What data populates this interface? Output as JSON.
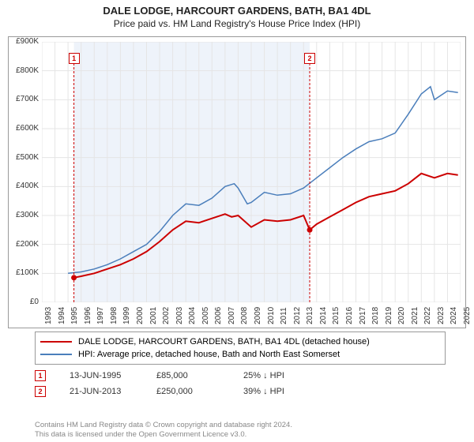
{
  "title": "DALE LODGE, HARCOURT GARDENS, BATH, BA1 4DL",
  "subtitle": "Price paid vs. HM Land Registry's House Price Index (HPI)",
  "chart": {
    "type": "line",
    "background_color": "#ffffff",
    "plot_band_color": "#eef3fa",
    "grid_color": "#e5e5e5",
    "axis_color": "#999999",
    "x_years": [
      1993,
      1994,
      1995,
      1996,
      1997,
      1998,
      1999,
      2000,
      2001,
      2002,
      2003,
      2004,
      2005,
      2006,
      2007,
      2008,
      2009,
      2010,
      2011,
      2012,
      2013,
      2014,
      2015,
      2016,
      2017,
      2018,
      2019,
      2020,
      2021,
      2022,
      2023,
      2024,
      2025
    ],
    "x_min_year": 1993,
    "x_max_year": 2025,
    "y_min": 0,
    "y_max": 900000,
    "y_tick_step": 100000,
    "y_ticks": [
      "£0",
      "£100K",
      "£200K",
      "£300K",
      "£400K",
      "£500K",
      "£600K",
      "£700K",
      "£800K",
      "£900K"
    ],
    "shaded_band": {
      "start_year": 1995.45,
      "end_year": 2013.47
    },
    "series": [
      {
        "id": "price_paid",
        "label": "DALE LODGE, HARCOURT GARDENS, BATH, BA1 4DL (detached house)",
        "color": "#cc0000",
        "line_width": 2,
        "data": [
          [
            1995.45,
            85000
          ],
          [
            1996,
            90000
          ],
          [
            1997,
            100000
          ],
          [
            1998,
            115000
          ],
          [
            1999,
            130000
          ],
          [
            2000,
            150000
          ],
          [
            2001,
            175000
          ],
          [
            2002,
            210000
          ],
          [
            2003,
            250000
          ],
          [
            2004,
            280000
          ],
          [
            2005,
            275000
          ],
          [
            2006,
            290000
          ],
          [
            2007,
            305000
          ],
          [
            2007.5,
            295000
          ],
          [
            2008,
            300000
          ],
          [
            2009,
            260000
          ],
          [
            2010,
            285000
          ],
          [
            2011,
            280000
          ],
          [
            2012,
            285000
          ],
          [
            2013,
            300000
          ],
          [
            2013.47,
            250000
          ],
          [
            2014,
            270000
          ],
          [
            2015,
            295000
          ],
          [
            2016,
            320000
          ],
          [
            2017,
            345000
          ],
          [
            2018,
            365000
          ],
          [
            2019,
            375000
          ],
          [
            2020,
            385000
          ],
          [
            2021,
            410000
          ],
          [
            2022,
            445000
          ],
          [
            2023,
            430000
          ],
          [
            2024,
            445000
          ],
          [
            2024.8,
            440000
          ]
        ],
        "markers": [
          {
            "x": 1995.45,
            "y": 85000
          },
          {
            "x": 2013.47,
            "y": 250000
          }
        ]
      },
      {
        "id": "hpi",
        "label": "HPI: Average price, detached house, Bath and North East Somerset",
        "color": "#4a7ebb",
        "line_width": 1.5,
        "data": [
          [
            1995,
            100000
          ],
          [
            1996,
            105000
          ],
          [
            1997,
            115000
          ],
          [
            1998,
            130000
          ],
          [
            1999,
            150000
          ],
          [
            2000,
            175000
          ],
          [
            2001,
            200000
          ],
          [
            2002,
            245000
          ],
          [
            2003,
            300000
          ],
          [
            2004,
            340000
          ],
          [
            2005,
            335000
          ],
          [
            2006,
            360000
          ],
          [
            2007,
            400000
          ],
          [
            2007.7,
            410000
          ],
          [
            2008,
            395000
          ],
          [
            2008.7,
            340000
          ],
          [
            2009,
            345000
          ],
          [
            2010,
            380000
          ],
          [
            2011,
            370000
          ],
          [
            2012,
            375000
          ],
          [
            2013,
            395000
          ],
          [
            2014,
            430000
          ],
          [
            2015,
            465000
          ],
          [
            2016,
            500000
          ],
          [
            2017,
            530000
          ],
          [
            2018,
            555000
          ],
          [
            2019,
            565000
          ],
          [
            2020,
            585000
          ],
          [
            2021,
            650000
          ],
          [
            2022,
            720000
          ],
          [
            2022.7,
            745000
          ],
          [
            2023,
            700000
          ],
          [
            2024,
            730000
          ],
          [
            2024.8,
            725000
          ]
        ]
      }
    ],
    "sale_markers": [
      {
        "n": "1",
        "year": 1995.45
      },
      {
        "n": "2",
        "year": 2013.47
      }
    ]
  },
  "legend": {
    "rows": [
      {
        "color": "#cc0000",
        "label": "DALE LODGE, HARCOURT GARDENS, BATH, BA1 4DL (detached house)"
      },
      {
        "color": "#4a7ebb",
        "label": "HPI: Average price, detached house, Bath and North East Somerset"
      }
    ]
  },
  "sales": [
    {
      "n": "1",
      "date": "13-JUN-1995",
      "price": "£85,000",
      "pct": "25% ↓ HPI"
    },
    {
      "n": "2",
      "date": "21-JUN-2013",
      "price": "£250,000",
      "pct": "39% ↓ HPI"
    }
  ],
  "footer": {
    "line1": "Contains HM Land Registry data © Crown copyright and database right 2024.",
    "line2": "This data is licensed under the Open Government Licence v3.0."
  }
}
